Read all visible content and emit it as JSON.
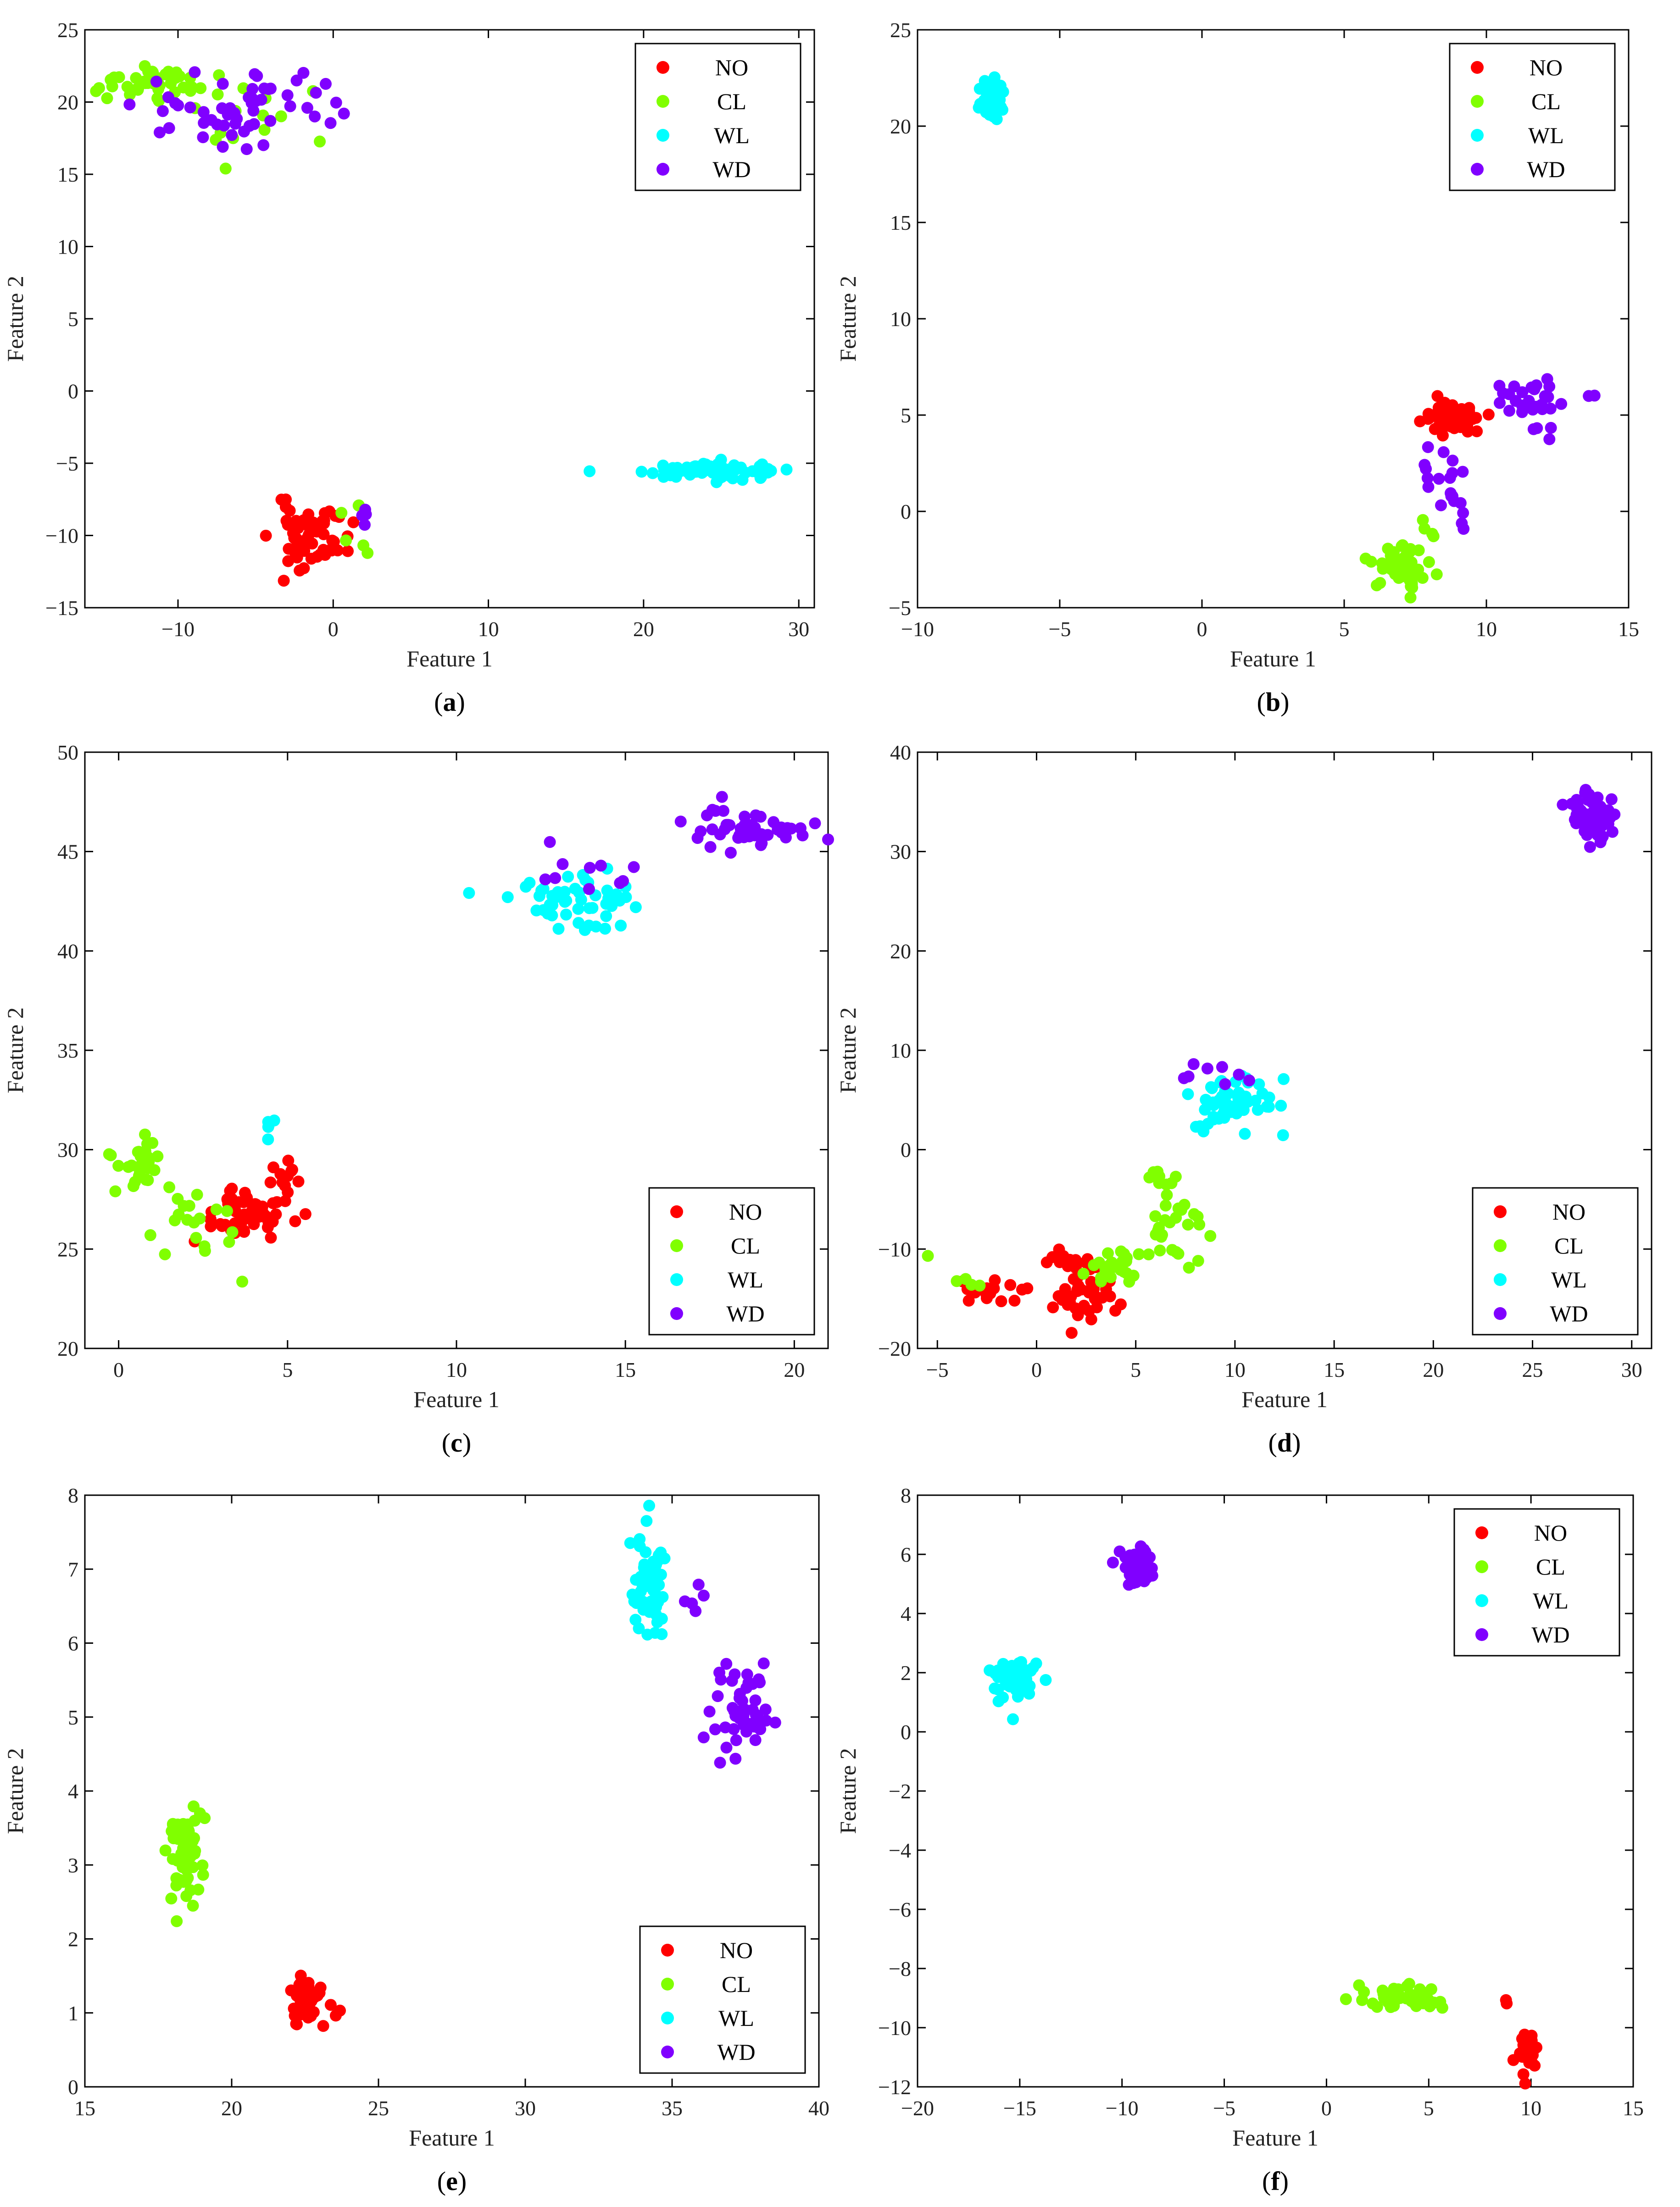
{
  "panels": [
    {
      "caption_letter": "a"
    },
    {
      "caption_letter": "b"
    },
    {
      "caption_letter": "c"
    },
    {
      "caption_letter": "d"
    },
    {
      "caption_letter": "e"
    },
    {
      "caption_letter": "f"
    }
  ],
  "chart_data": [
    {
      "panel": "a",
      "type": "scatter",
      "xlabel": "Feature 1",
      "ylabel": "Feature 2",
      "xlim": [
        -16,
        31
      ],
      "ylim": [
        -15,
        25
      ],
      "xticks": [
        -10,
        0,
        10,
        20,
        30
      ],
      "yticks": [
        -15,
        -10,
        -5,
        0,
        5,
        10,
        15,
        20,
        25
      ],
      "legend_position": "top-right",
      "series": [
        {
          "name": "NO",
          "color": "#ff0000",
          "clusters": [
            {
              "cx": -1.5,
              "cy": -10,
              "sx": 1.2,
              "sy": 1.1,
              "n": 60,
              "seed": 11
            }
          ]
        },
        {
          "name": "CL",
          "color": "#80ff00",
          "clusters": [
            {
              "cx": -12,
              "cy": 21.3,
              "sx": 1.5,
              "sy": 0.5,
              "n": 40,
              "seed": 12
            },
            {
              "cx": -6,
              "cy": 19,
              "sx": 2,
              "sy": 1.3,
              "n": 15,
              "seed": 13
            },
            {
              "cx": 1.5,
              "cy": -9.5,
              "sx": 0.6,
              "sy": 1.2,
              "n": 6,
              "seed": 14
            }
          ]
        },
        {
          "name": "WL",
          "color": "#00ffff",
          "clusters": [
            {
              "cx": 24.5,
              "cy": -5.5,
              "sx": 2.3,
              "sy": 0.35,
              "n": 70,
              "seed": 15
            }
          ]
        },
        {
          "name": "WD",
          "color": "#8000ff",
          "clusters": [
            {
              "cx": -6,
              "cy": 19.5,
              "sx": 3.3,
              "sy": 1.4,
              "n": 55,
              "seed": 16
            },
            {
              "cx": 2,
              "cy": -8.5,
              "sx": 0.2,
              "sy": 0.5,
              "n": 4,
              "seed": 17
            }
          ]
        }
      ]
    },
    {
      "panel": "b",
      "type": "scatter",
      "xlabel": "Feature 1",
      "ylabel": "Feature 2",
      "xlim": [
        -10,
        15
      ],
      "ylim": [
        -5,
        25
      ],
      "xticks": [
        -10,
        -5,
        0,
        5,
        10,
        15
      ],
      "yticks": [
        -5,
        0,
        5,
        10,
        15,
        20,
        25
      ],
      "legend_position": "top-right",
      "series": [
        {
          "name": "NO",
          "color": "#ff0000",
          "clusters": [
            {
              "cx": 8.8,
              "cy": 4.8,
              "sx": 0.5,
              "sy": 0.45,
              "n": 60,
              "seed": 21
            }
          ]
        },
        {
          "name": "CL",
          "color": "#80ff00",
          "clusters": [
            {
              "cx": 7,
              "cy": -2.8,
              "sx": 0.4,
              "sy": 0.5,
              "n": 60,
              "seed": 22
            },
            {
              "cx": 7.7,
              "cy": -1,
              "sx": 0.2,
              "sy": 0.5,
              "n": 4,
              "seed": 23
            }
          ]
        },
        {
          "name": "WL",
          "color": "#00ffff",
          "clusters": [
            {
              "cx": -7.4,
              "cy": 21.3,
              "sx": 0.22,
              "sy": 0.6,
              "n": 50,
              "seed": 24
            }
          ]
        },
        {
          "name": "WD",
          "color": "#8000ff",
          "clusters": [
            {
              "cx": 8.5,
              "cy": 1,
              "sx": 0.5,
              "sy": 1.3,
              "n": 20,
              "seed": 25
            },
            {
              "cx": 11.8,
              "cy": 5.5,
              "sx": 0.9,
              "sy": 0.9,
              "n": 30,
              "seed": 26
            }
          ]
        }
      ]
    },
    {
      "panel": "c",
      "type": "scatter",
      "xlabel": "Feature 1",
      "ylabel": "Feature 2",
      "xlim": [
        -1,
        21
      ],
      "ylim": [
        20,
        50
      ],
      "xticks": [
        0,
        5,
        10,
        15,
        20
      ],
      "yticks": [
        20,
        25,
        30,
        35,
        40,
        45,
        50
      ],
      "legend_position": "bottom-right",
      "series": [
        {
          "name": "NO",
          "color": "#ff0000",
          "clusters": [
            {
              "cx": 3.8,
              "cy": 26.8,
              "sx": 0.6,
              "sy": 0.6,
              "n": 55,
              "seed": 31
            },
            {
              "cx": 5,
              "cy": 28.5,
              "sx": 0.3,
              "sy": 0.4,
              "n": 12,
              "seed": 32
            }
          ]
        },
        {
          "name": "CL",
          "color": "#80ff00",
          "clusters": [
            {
              "cx": 0.6,
              "cy": 29.3,
              "sx": 0.4,
              "sy": 0.6,
              "n": 30,
              "seed": 33
            },
            {
              "cx": 2.2,
              "cy": 26.5,
              "sx": 0.8,
              "sy": 1.1,
              "n": 20,
              "seed": 34
            }
          ]
        },
        {
          "name": "WL",
          "color": "#00ffff",
          "clusters": [
            {
              "cx": 13.5,
              "cy": 42.5,
              "sx": 1.0,
              "sy": 0.7,
              "n": 50,
              "seed": 35
            },
            {
              "cx": 4.4,
              "cy": 30.8,
              "sx": 0.1,
              "sy": 0.4,
              "n": 5,
              "seed": 36
            }
          ]
        },
        {
          "name": "WD",
          "color": "#8000ff",
          "clusters": [
            {
              "cx": 18.8,
              "cy": 46.2,
              "sx": 0.8,
              "sy": 0.5,
              "n": 50,
              "seed": 37
            },
            {
              "cx": 14.5,
              "cy": 43.8,
              "sx": 1.6,
              "sy": 0.6,
              "n": 10,
              "seed": 38
            }
          ]
        }
      ]
    },
    {
      "panel": "d",
      "type": "scatter",
      "xlabel": "Feature 1",
      "ylabel": "Feature 2",
      "xlim": [
        -6,
        31
      ],
      "ylim": [
        -20,
        40
      ],
      "xticks": [
        -5,
        0,
        5,
        10,
        15,
        20,
        25,
        30
      ],
      "yticks": [
        -20,
        -10,
        0,
        10,
        20,
        30,
        40
      ],
      "legend_position": "bottom-right",
      "series": [
        {
          "name": "NO",
          "color": "#ff0000",
          "clusters": [
            {
              "cx": -2,
              "cy": -14.3,
              "sx": 0.9,
              "sy": 0.7,
              "n": 20,
              "seed": 41
            },
            {
              "cx": 2.3,
              "cy": -14.5,
              "sx": 0.8,
              "sy": 1.2,
              "n": 40,
              "seed": 42
            },
            {
              "cx": 1.2,
              "cy": -11.2,
              "sx": 0.8,
              "sy": 0.5,
              "n": 15,
              "seed": 43
            }
          ]
        },
        {
          "name": "CL",
          "color": "#80ff00",
          "clusters": [
            {
              "cx": 4.2,
              "cy": -12,
              "sx": 1.0,
              "sy": 1.1,
              "n": 25,
              "seed": 44
            },
            {
              "cx": 7,
              "cy": -8,
              "sx": 0.8,
              "sy": 1.4,
              "n": 25,
              "seed": 45
            },
            {
              "cx": 6.2,
              "cy": -3,
              "sx": 0.4,
              "sy": 0.8,
              "n": 8,
              "seed": 46
            },
            {
              "cx": -3.5,
              "cy": -12.5,
              "sx": 0.8,
              "sy": 1.0,
              "n": 5,
              "seed": 47
            }
          ]
        },
        {
          "name": "WL",
          "color": "#00ffff",
          "clusters": [
            {
              "cx": 10,
              "cy": 4.5,
              "sx": 1.2,
              "sy": 1.6,
              "n": 60,
              "seed": 48
            }
          ]
        },
        {
          "name": "WD",
          "color": "#8000ff",
          "clusters": [
            {
              "cx": 28,
              "cy": 33.5,
              "sx": 0.6,
              "sy": 1.6,
              "n": 60,
              "seed": 49
            },
            {
              "cx": 8.5,
              "cy": 7,
              "sx": 1.0,
              "sy": 1.0,
              "n": 8,
              "seed": 50
            }
          ]
        }
      ]
    },
    {
      "panel": "e",
      "type": "scatter",
      "xlabel": "Feature 1",
      "ylabel": "Feature 2",
      "xlim": [
        15,
        40
      ],
      "ylim": [
        0,
        8
      ],
      "xticks": [
        15,
        20,
        25,
        30,
        35,
        40
      ],
      "yticks": [
        0,
        1,
        2,
        3,
        4,
        5,
        6,
        7,
        8
      ],
      "legend_position": "bottom-right",
      "series": [
        {
          "name": "NO",
          "color": "#ff0000",
          "clusters": [
            {
              "cx": 22.5,
              "cy": 1.15,
              "sx": 0.3,
              "sy": 0.17,
              "n": 45,
              "seed": 51
            },
            {
              "cx": 23.6,
              "cy": 1.0,
              "sx": 0.05,
              "sy": 0.05,
              "n": 2,
              "seed": 52
            }
          ]
        },
        {
          "name": "CL",
          "color": "#80ff00",
          "clusters": [
            {
              "cx": 18.4,
              "cy": 3.1,
              "sx": 0.3,
              "sy": 0.3,
              "n": 55,
              "seed": 53
            }
          ]
        },
        {
          "name": "WL",
          "color": "#00ffff",
          "clusters": [
            {
              "cx": 34.2,
              "cy": 6.8,
              "sx": 0.4,
              "sy": 0.4,
              "n": 55,
              "seed": 54
            }
          ]
        },
        {
          "name": "WD",
          "color": "#8000ff",
          "clusters": [
            {
              "cx": 37.3,
              "cy": 5.1,
              "sx": 0.5,
              "sy": 0.3,
              "n": 50,
              "seed": 55
            },
            {
              "cx": 36,
              "cy": 6.6,
              "sx": 0.3,
              "sy": 0.15,
              "n": 5,
              "seed": 56
            }
          ]
        }
      ]
    },
    {
      "panel": "f",
      "type": "scatter",
      "xlabel": "Feature 1",
      "ylabel": "Feature 2",
      "xlim": [
        -20,
        15
      ],
      "ylim": [
        -12,
        8
      ],
      "xticks": [
        -20,
        -15,
        -10,
        -5,
        0,
        5,
        10,
        15
      ],
      "yticks": [
        -12,
        -10,
        -8,
        -6,
        -4,
        -2,
        0,
        2,
        4,
        6,
        8
      ],
      "legend_position": "top-right",
      "series": [
        {
          "name": "NO",
          "color": "#ff0000",
          "clusters": [
            {
              "cx": 9.8,
              "cy": -10.7,
              "sx": 0.25,
              "sy": 0.35,
              "n": 40,
              "seed": 61
            },
            {
              "cx": 8.8,
              "cy": -9.1,
              "sx": 0.05,
              "sy": 0.05,
              "n": 2,
              "seed": 62
            }
          ]
        },
        {
          "name": "CL",
          "color": "#80ff00",
          "clusters": [
            {
              "cx": 3.8,
              "cy": -9,
              "sx": 0.9,
              "sy": 0.2,
              "n": 50,
              "seed": 63
            }
          ]
        },
        {
          "name": "WL",
          "color": "#00ffff",
          "clusters": [
            {
              "cx": -15.3,
              "cy": 1.7,
              "sx": 0.6,
              "sy": 0.35,
              "n": 50,
              "seed": 64
            }
          ]
        },
        {
          "name": "WD",
          "color": "#8000ff",
          "clusters": [
            {
              "cx": -9.2,
              "cy": 5.6,
              "sx": 0.4,
              "sy": 0.35,
              "n": 50,
              "seed": 65
            }
          ]
        }
      ]
    }
  ]
}
